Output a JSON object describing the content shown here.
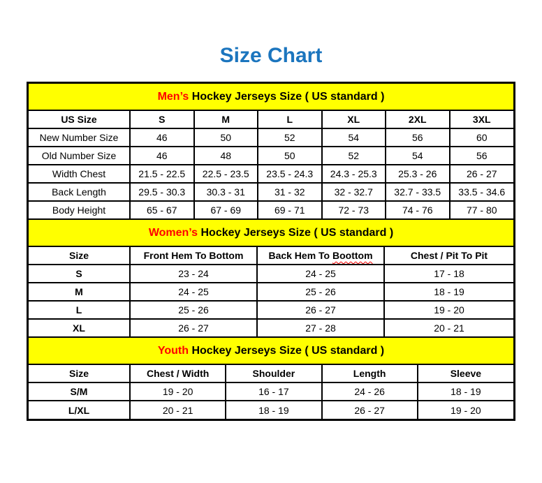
{
  "page": {
    "title": "Size Chart"
  },
  "colors": {
    "title": "#1B75BE",
    "banner_bg": "#FFFF00",
    "banner_highlight": "#FF0000",
    "border": "#000000",
    "text": "#000000",
    "background": "#FFFFFF"
  },
  "sections": [
    {
      "id": "men",
      "banner": {
        "highlight": "Men’s",
        "rest": " Hockey Jerseys Size ( US standard )"
      },
      "columns": [
        "US Size",
        "S",
        "M",
        "L",
        "XL",
        "2XL",
        "3XL"
      ],
      "rows": [
        {
          "label": "New Number Size",
          "values": [
            "46",
            "50",
            "52",
            "54",
            "56",
            "60"
          ]
        },
        {
          "label": "Old Number Size",
          "values": [
            "46",
            "48",
            "50",
            "52",
            "54",
            "56"
          ]
        },
        {
          "label": "Width Chest",
          "values": [
            "21.5 - 22.5",
            "22.5 - 23.5",
            "23.5 - 24.3",
            "24.3 - 25.3",
            "25.3 - 26",
            "26 - 27"
          ]
        },
        {
          "label": "Back Length",
          "values": [
            "29.5 - 30.3",
            "30.3 - 31",
            "31 - 32",
            "32 - 32.7",
            "32.7 - 33.5",
            "33.5 - 34.6"
          ]
        },
        {
          "label": "Body Height",
          "values": [
            "65 - 67",
            "67 - 69",
            "69 - 71",
            "72 - 73",
            "74 - 76",
            "77 - 80"
          ]
        }
      ]
    },
    {
      "id": "women",
      "banner": {
        "highlight": "Women’s",
        "rest": " Hockey Jerseys Size ( US standard )"
      },
      "columns": [
        "Size",
        "Front Hem To Bottom",
        "Back Hem To Boottom",
        "Chest / Pit To Pit"
      ],
      "misspelling": {
        "column_index": 2,
        "prefix": "Back Hem To ",
        "word": "Boottom"
      },
      "rows": [
        {
          "label": "S",
          "values": [
            "23 - 24",
            "24 - 25",
            "17 - 18"
          ]
        },
        {
          "label": "M",
          "values": [
            "24 - 25",
            "25 - 26",
            "18 - 19"
          ]
        },
        {
          "label": "L",
          "values": [
            "25 - 26",
            "26 - 27",
            "19 - 20"
          ]
        },
        {
          "label": "XL",
          "values": [
            "26 - 27",
            "27 - 28",
            "20 - 21"
          ]
        }
      ]
    },
    {
      "id": "youth",
      "banner": {
        "highlight": "Youth",
        "rest": " Hockey Jerseys Size ( US standard )"
      },
      "columns": [
        "Size",
        "Chest / Width",
        "Shoulder",
        "Length",
        "Sleeve"
      ],
      "rows": [
        {
          "label": "S/M",
          "values": [
            "19 - 20",
            "16 - 17",
            "24 - 26",
            "18 - 19"
          ]
        },
        {
          "label": "L/XL",
          "values": [
            "20 - 21",
            "18 - 19",
            "26 - 27",
            "19 - 20"
          ]
        }
      ]
    }
  ]
}
